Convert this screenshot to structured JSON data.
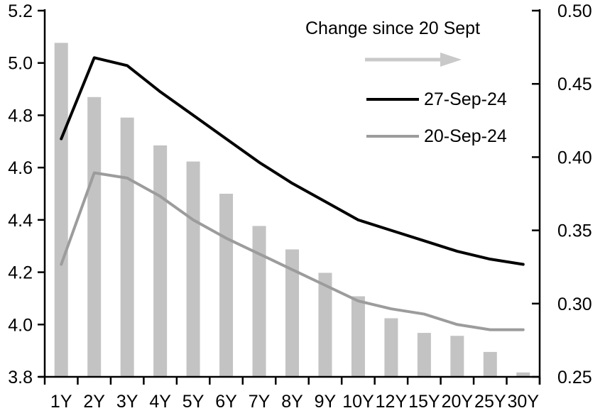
{
  "legend": {
    "title": "Change since 20 Sept",
    "arrow_icon": "right-arrow",
    "arrow_color": "#c9c9c9",
    "items": [
      {
        "label": "27-Sep-24",
        "color": "#000000"
      },
      {
        "label": "20-Sep-24",
        "color": "#9c9c9c"
      }
    ]
  },
  "chart_data": {
    "type": "bar+line combo",
    "title": "",
    "xlabel": "",
    "ylabel_left": "",
    "ylabel_right": "",
    "grid": false,
    "legend_position": "top-right-inside",
    "categories": [
      "1Y",
      "2Y",
      "3Y",
      "4Y",
      "5Y",
      "6Y",
      "7Y",
      "8Y",
      "9Y",
      "10Y",
      "12Y",
      "15Y",
      "20Y",
      "25Y",
      "30Y"
    ],
    "series": [
      {
        "name": "Change since 20 Sept",
        "type": "bar",
        "axis": "right",
        "color": "#c3c3c3",
        "values": [
          0.478,
          0.441,
          0.427,
          0.408,
          0.397,
          0.375,
          0.353,
          0.337,
          0.321,
          0.305,
          0.29,
          0.28,
          0.278,
          0.267,
          0.253
        ]
      },
      {
        "name": "27-Sep-24",
        "type": "line",
        "axis": "left",
        "color": "#000000",
        "values": [
          4.71,
          5.02,
          4.99,
          4.89,
          4.8,
          4.71,
          4.62,
          4.54,
          4.47,
          4.4,
          4.36,
          4.32,
          4.28,
          4.25,
          4.23
        ]
      },
      {
        "name": "20-Sep-24",
        "type": "line",
        "axis": "left",
        "color": "#9c9c9c",
        "values": [
          4.23,
          4.58,
          4.56,
          4.49,
          4.4,
          4.33,
          4.27,
          4.21,
          4.15,
          4.09,
          4.06,
          4.04,
          4.0,
          3.98,
          3.98
        ]
      }
    ],
    "left_axis": {
      "min": 3.8,
      "max": 5.2,
      "tick_labels": [
        "5.2",
        "5.0",
        "4.8",
        "4.6",
        "4.4",
        "4.2",
        "4.0",
        "3.8"
      ]
    },
    "right_axis": {
      "min": 0.25,
      "max": 0.5,
      "tick_labels": [
        "0.50",
        "0.45",
        "0.40",
        "0.35",
        "0.30",
        "0.25"
      ]
    }
  }
}
